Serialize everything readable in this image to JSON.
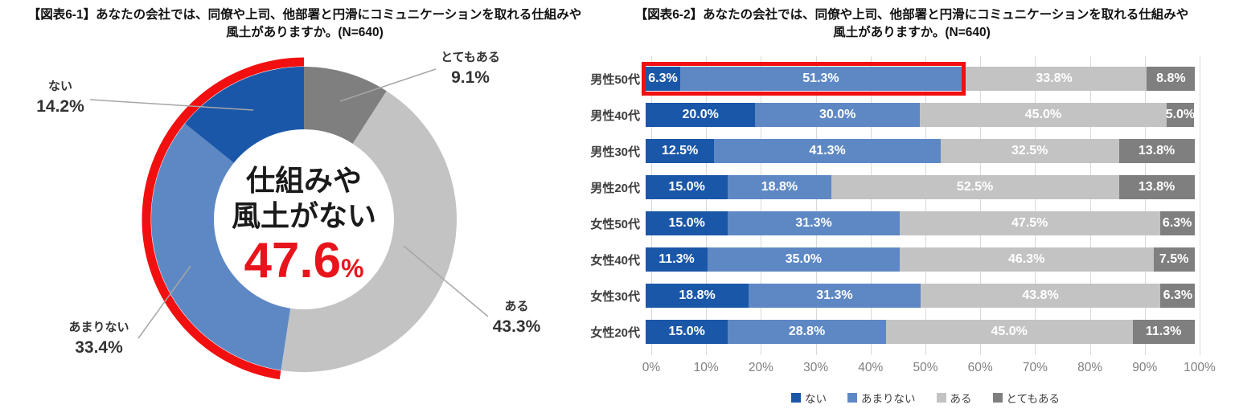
{
  "donut_panel": {
    "title_line1": "【図表6-1】あなたの会社では、同僚や上司、他部署と円滑にコミュニケーションを取れる仕組みや",
    "title_line2": "風土がありますか。(N=640)",
    "center_label": {
      "line1": "仕組みや",
      "line2": "風土がない",
      "value": "47.6",
      "unit": "%"
    }
  },
  "bar_panel": {
    "title_line1": "【図表6-2】あなたの会社では、同僚や上司、他部署と円滑にコミュニケーションを取れる仕組みや",
    "title_line2": "風土がありますか。(N=640)"
  },
  "colors": {
    "nai": "#1b57a8",
    "amari_nai": "#5e88c4",
    "aru": "#c3c3c3",
    "totemo_aru": "#7f7f7f",
    "highlight_red": "#f20f0f",
    "value_red": "#e8141c"
  },
  "chart_data": [
    {
      "type": "pie",
      "subtype": "donut",
      "start": "top",
      "direction": "clockwise",
      "labels": [
        "とてもある",
        "ある",
        "あまりない",
        "ない"
      ],
      "values": [
        9.1,
        43.3,
        33.4,
        14.2
      ],
      "colors": [
        "#7f7f7f",
        "#c3c3c3",
        "#5e88c4",
        "#1b57a8"
      ],
      "annotation": {
        "text": "仕組みや風土がない",
        "value": 47.6,
        "covers": [
          "ない",
          "あまりない"
        ],
        "color": "#f20f0f"
      }
    },
    {
      "type": "bar",
      "stacked": true,
      "orientation": "horizontal",
      "categories": [
        "男性50代",
        "男性40代",
        "男性30代",
        "男性20代",
        "女性50代",
        "女性40代",
        "女性30代",
        "女性20代"
      ],
      "series": [
        {
          "name": "ない",
          "color": "#1b57a8",
          "values": [
            6.3,
            20.0,
            12.5,
            15.0,
            15.0,
            11.3,
            18.8,
            15.0
          ]
        },
        {
          "name": "あまりない",
          "color": "#5e88c4",
          "values": [
            51.3,
            30.0,
            41.3,
            18.8,
            31.3,
            35.0,
            31.3,
            28.8
          ]
        },
        {
          "name": "ある",
          "color": "#c3c3c3",
          "values": [
            33.8,
            45.0,
            32.5,
            52.5,
            47.5,
            46.3,
            43.8,
            45.0
          ]
        },
        {
          "name": "とてもある",
          "color": "#7f7f7f",
          "values": [
            8.8,
            5.0,
            13.8,
            13.8,
            6.3,
            7.5,
            6.3,
            11.3
          ]
        }
      ],
      "xlim": [
        0,
        100
      ],
      "x_tick_labels": [
        "0%",
        "10%",
        "20%",
        "30%",
        "40%",
        "50%",
        "60%",
        "70%",
        "80%",
        "90%",
        "100%"
      ],
      "value_label_format": "0.0%",
      "legend_position": "bottom",
      "grid": true,
      "highlight": {
        "category": "男性50代",
        "series": [
          "ない",
          "あまりない"
        ],
        "color": "#f20f0f"
      }
    }
  ]
}
